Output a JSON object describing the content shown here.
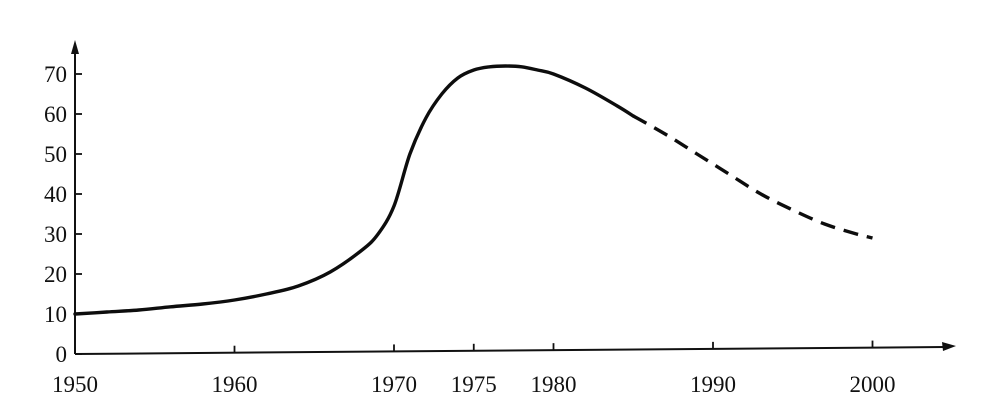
{
  "chart_data": {
    "type": "line",
    "title": "",
    "xlabel": "",
    "ylabel": "",
    "xlim": [
      1950,
      2005
    ],
    "ylim": [
      0,
      75
    ],
    "x_ticks": [
      1950,
      1960,
      1970,
      1975,
      1980,
      1990,
      2000
    ],
    "y_ticks": [
      0,
      10,
      20,
      30,
      40,
      50,
      60,
      70
    ],
    "grid": false,
    "legend": "none",
    "series": [
      {
        "style": "solid",
        "points": [
          [
            1950,
            10
          ],
          [
            1952,
            10.5
          ],
          [
            1954,
            11
          ],
          [
            1956,
            11.8
          ],
          [
            1958,
            12.5
          ],
          [
            1960,
            13.5
          ],
          [
            1962,
            15
          ],
          [
            1964,
            17
          ],
          [
            1966,
            20.5
          ],
          [
            1968,
            26
          ],
          [
            1969,
            30
          ],
          [
            1970,
            37
          ],
          [
            1971,
            50
          ],
          [
            1972,
            59
          ],
          [
            1973,
            65
          ],
          [
            1974,
            69
          ],
          [
            1975,
            71
          ],
          [
            1976,
            71.8
          ],
          [
            1977,
            72
          ],
          [
            1978,
            71.8
          ],
          [
            1979,
            71
          ],
          [
            1980,
            70
          ],
          [
            1982,
            66.5
          ],
          [
            1984,
            62
          ],
          [
            1985,
            59.5
          ]
        ]
      },
      {
        "style": "dashed",
        "points": [
          [
            1985,
            59.5
          ],
          [
            1987,
            55
          ],
          [
            1989,
            50
          ],
          [
            1991,
            45
          ],
          [
            1993,
            40
          ],
          [
            1995,
            36
          ],
          [
            1997,
            32.5
          ],
          [
            1999,
            30
          ],
          [
            2000,
            29
          ]
        ]
      }
    ],
    "colors": {
      "line": "#0d0d0d",
      "axis": "#111111",
      "background": "#ffffff"
    }
  }
}
